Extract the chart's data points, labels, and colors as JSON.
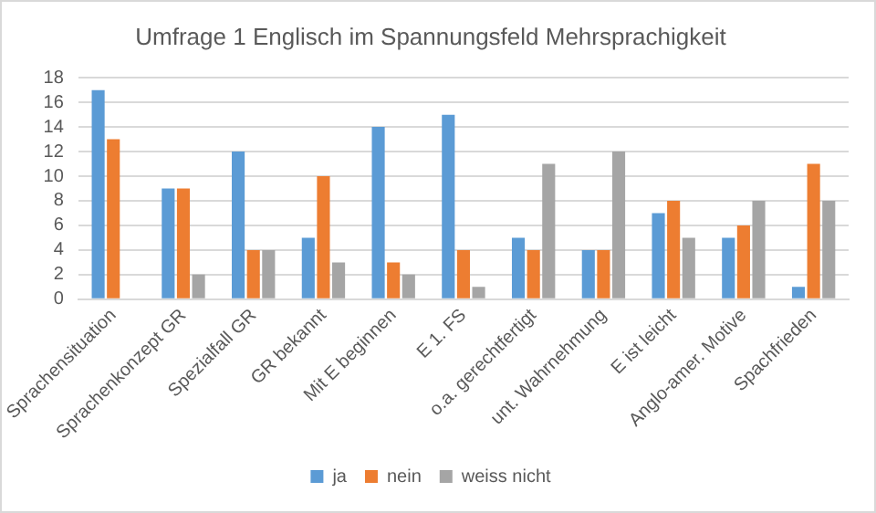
{
  "chart_data": {
    "type": "bar",
    "title": "Umfrage 1 Englisch im Spannungsfeld Mehrsprachigkeit",
    "categories": [
      "Sprachensituation",
      "Sprachenkonzept GR",
      "Spezialfall GR",
      "GR bekannt",
      "Mit E beginnen",
      "E 1. FS",
      "o.a. gerechtfertigt",
      "unt. Wahrnehmung",
      "E ist leicht",
      "Anglo-amer. Motive",
      "Spachfrieden"
    ],
    "series": [
      {
        "name": "ja",
        "color": "#5b9bd5",
        "values": [
          17,
          9,
          12,
          5,
          14,
          15,
          5,
          4,
          7,
          5,
          1
        ]
      },
      {
        "name": "nein",
        "color": "#ed7d31",
        "values": [
          13,
          9,
          4,
          10,
          3,
          4,
          4,
          4,
          8,
          6,
          11
        ]
      },
      {
        "name": "weiss nicht",
        "color": "#a5a5a5",
        "values": [
          0,
          2,
          4,
          3,
          2,
          1,
          11,
          12,
          5,
          8,
          8
        ]
      }
    ],
    "ylim": [
      0,
      18
    ],
    "yticks": [
      0,
      2,
      4,
      6,
      8,
      10,
      12,
      14,
      16,
      18
    ],
    "grid": "y",
    "legend": "bottom"
  }
}
